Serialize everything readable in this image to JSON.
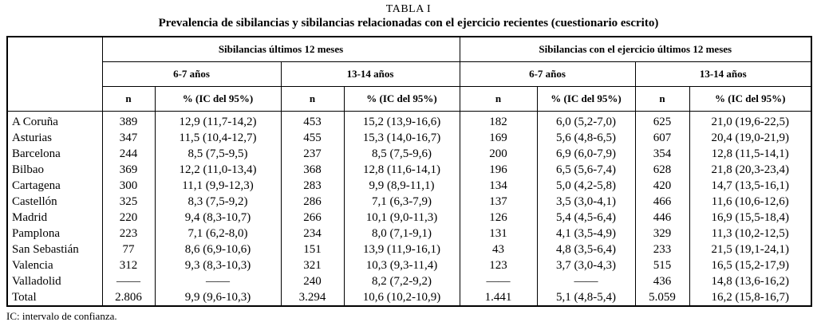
{
  "page": {
    "title": "TABLA I",
    "subtitle": "Prevalencia de sibilancias y sibilancias relacionadas con el ejercicio recientes (cuestionario escrito)",
    "footnote": "IC: intervalo de confianza."
  },
  "table": {
    "group_headers": [
      "Sibilancias últimos 12 meses",
      "Sibilancias con el ejercicio últimos 12 meses"
    ],
    "age_headers": [
      "6-7 años",
      "13-14 años",
      "6-7 años",
      "13-14 años"
    ],
    "col_n": "n",
    "col_pct": "% (IC del 95%)",
    "rows": [
      [
        "A Coruña",
        "389",
        "12,9 (11,7-14,2)",
        "453",
        "15,2 (13,9-16,6)",
        "182",
        "6,0 (5,2-7,0)",
        "625",
        "21,0 (19,6-22,5)"
      ],
      [
        "Asturias",
        "347",
        "11,5 (10,4-12,7)",
        "455",
        "15,3 (14,0-16,7)",
        "169",
        "5,6 (4,8-6,5)",
        "607",
        "20,4 (19,0-21,9)"
      ],
      [
        "Barcelona",
        "244",
        "8,5 (7,5-9,5)",
        "237",
        "8,5 (7,5-9,6)",
        "200",
        "6,9 (6,0-7,9)",
        "354",
        "12,8 (11,5-14,1)"
      ],
      [
        "Bilbao",
        "369",
        "12,2 (11,0-13,4)",
        "368",
        "12,8 (11,6-14,1)",
        "196",
        "6,5 (5,6-7,4)",
        "628",
        "21,8 (20,3-23,4)"
      ],
      [
        "Cartagena",
        "300",
        "11,1 (9,9-12,3)",
        "283",
        "9,9 (8,9-11,1)",
        "134",
        "5,0 (4,2-5,8)",
        "420",
        "14,7 (13,5-16,1)"
      ],
      [
        "Castellón",
        "325",
        "8,3 (7,5-9,2)",
        "286",
        "7,1 (6,3-7,9)",
        "137",
        "3,5 (3,0-4,1)",
        "466",
        "11,6 (10,6-12,6)"
      ],
      [
        "Madrid",
        "220",
        "9,4 (8,3-10,7)",
        "266",
        "10,1 (9,0-11,3)",
        "126",
        "5,4 (4,5-6,4)",
        "446",
        "16,9 (15,5-18,4)"
      ],
      [
        "Pamplona",
        "223",
        "7,1 (6,2-8,0)",
        "234",
        "8,0 (7,1-9,1)",
        "131",
        "4,1 (3,5-4,9)",
        "329",
        "11,3 (10,2-12,5)"
      ],
      [
        "San Sebastián",
        "77",
        "8,6 (6,9-10,6)",
        "151",
        "13,9 (11,9-16,1)",
        "43",
        "4,8 (3,5-6,4)",
        "233",
        "21,5 (19,1-24,1)"
      ],
      [
        "Valencia",
        "312",
        "9,3 (8,3-10,3)",
        "321",
        "10,3 (9,3-11,4)",
        "123",
        "3,7 (3,0-4,3)",
        "515",
        "16,5 (15,2-17,9)"
      ],
      [
        "Valladolid",
        "——",
        "——",
        "240",
        "8,2 (7,2-9,2)",
        "——",
        "——",
        "436",
        "14,8 (13,6-16,2)"
      ],
      [
        "Total",
        "2.806",
        "9,9 (9,6-10,3)",
        "3.294",
        "10,6 (10,2-10,9)",
        "1.441",
        "5,1 (4,8-5,4)",
        "5.059",
        "16,2 (15,8-16,7)"
      ]
    ]
  }
}
